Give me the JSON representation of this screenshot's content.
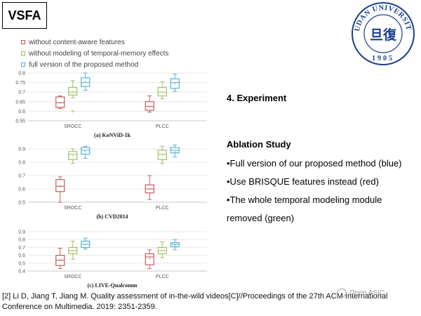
{
  "slide": {
    "title": "VSFA",
    "section_heading": "4. Experiment",
    "ablation_title": "Ablation Study",
    "bullets": [
      "•Full version of our proposed method (blue)",
      "•Use BRISQUE features instead (red)",
      "•The whole temporal modeling module",
      "removed (green)"
    ],
    "footnote_line1": "[2] Li D, Jiang T, Jiang M. Quality assessment of in-the-wild videos[C]//Proceedings of the 27th ACM International",
    "footnote_line2": "Conference on Multimedia. 2019: 2351-2359.",
    "watermark": "Open ASIC",
    "logo": {
      "top_text": "FUDAN UNIVERSITY",
      "year": "1905",
      "center_text": "旦復",
      "color": "#1a3f8f"
    }
  },
  "legend": [
    {
      "label": "without content-aware features",
      "color": "#c0504d"
    },
    {
      "label": "without modeling of temporal-memory effects",
      "color": "#9bbb59"
    },
    {
      "label": "full version of the proposed method",
      "color": "#4bacc6"
    }
  ],
  "chart_data": [
    {
      "type": "boxplot",
      "caption": "(a) KoNViD-1k",
      "categories": [
        "SROCC",
        "PLCC"
      ],
      "ylim": [
        0.55,
        0.8
      ],
      "yticks": [
        "0.55",
        "0.6",
        "0.65",
        "0.7",
        "0.75",
        "0.8"
      ],
      "series": [
        {
          "name": "without content-aware features",
          "color": "#c0504d",
          "boxes": [
            {
              "min": 0.615,
              "q1": 0.62,
              "median": 0.645,
              "q3": 0.675,
              "max": 0.68,
              "mean": 0.645
            },
            {
              "min": 0.595,
              "q1": 0.605,
              "median": 0.625,
              "q3": 0.65,
              "max": 0.68,
              "mean": 0.625
            }
          ]
        },
        {
          "name": "without modeling of temporal-memory effects",
          "color": "#9bbb59",
          "boxes": [
            {
              "min": 0.67,
              "q1": 0.685,
              "median": 0.7,
              "q3": 0.725,
              "max": 0.76,
              "mean": 0.705,
              "outliers": [
                0.6
              ]
            },
            {
              "min": 0.665,
              "q1": 0.68,
              "median": 0.7,
              "q3": 0.725,
              "max": 0.755,
              "mean": 0.7
            }
          ]
        },
        {
          "name": "full version of the proposed method",
          "color": "#4bacc6",
          "boxes": [
            {
              "min": 0.71,
              "q1": 0.73,
              "median": 0.75,
              "q3": 0.775,
              "max": 0.8,
              "mean": 0.755
            },
            {
              "min": 0.705,
              "q1": 0.72,
              "median": 0.75,
              "q3": 0.77,
              "max": 0.795,
              "mean": 0.745
            }
          ]
        }
      ]
    },
    {
      "type": "boxplot",
      "caption": "(b) CVD2014",
      "categories": [
        "SROCC",
        "PLCC"
      ],
      "ylim": [
        0.5,
        0.9
      ],
      "yticks": [
        "0.5",
        "0.6",
        "0.7",
        "0.8",
        "0.9"
      ],
      "series": [
        {
          "name": "without content-aware features",
          "color": "#c0504d",
          "boxes": [
            {
              "min": 0.5,
              "q1": 0.58,
              "median": 0.62,
              "q3": 0.67,
              "max": 0.69,
              "mean": 0.62
            },
            {
              "min": 0.52,
              "q1": 0.57,
              "median": 0.6,
              "q3": 0.63,
              "max": 0.7,
              "mean": 0.6
            }
          ]
        },
        {
          "name": "without modeling of temporal-memory effects",
          "color": "#9bbb59",
          "boxes": [
            {
              "min": 0.79,
              "q1": 0.82,
              "median": 0.86,
              "q3": 0.88,
              "max": 0.9,
              "mean": 0.85
            },
            {
              "min": 0.79,
              "q1": 0.82,
              "median": 0.86,
              "q3": 0.89,
              "max": 0.92,
              "mean": 0.85
            }
          ]
        },
        {
          "name": "full version of the proposed method",
          "color": "#4bacc6",
          "boxes": [
            {
              "min": 0.83,
              "q1": 0.86,
              "median": 0.89,
              "q3": 0.91,
              "max": 0.92,
              "mean": 0.88
            },
            {
              "min": 0.84,
              "q1": 0.87,
              "median": 0.89,
              "q3": 0.91,
              "max": 0.93,
              "mean": 0.88
            }
          ]
        }
      ]
    },
    {
      "type": "boxplot",
      "caption": "(c) LIVE-Qualcomm",
      "categories": [
        "SROCC",
        "PLCC"
      ],
      "ylim": [
        0.4,
        0.9
      ],
      "yticks": [
        "0.4",
        "0.5",
        "0.6",
        "0.7",
        "0.8",
        "0.9"
      ],
      "series": [
        {
          "name": "without content-aware features",
          "color": "#c0504d",
          "boxes": [
            {
              "min": 0.43,
              "q1": 0.47,
              "median": 0.54,
              "q3": 0.6,
              "max": 0.69,
              "mean": 0.54
            },
            {
              "min": 0.43,
              "q1": 0.48,
              "median": 0.58,
              "q3": 0.62,
              "max": 0.67,
              "mean": 0.56
            }
          ]
        },
        {
          "name": "without modeling of temporal-memory effects",
          "color": "#9bbb59",
          "boxes": [
            {
              "min": 0.55,
              "q1": 0.62,
              "median": 0.66,
              "q3": 0.7,
              "max": 0.78,
              "mean": 0.66
            },
            {
              "min": 0.57,
              "q1": 0.62,
              "median": 0.66,
              "q3": 0.7,
              "max": 0.77,
              "mean": 0.66
            }
          ]
        },
        {
          "name": "full version of the proposed method",
          "color": "#4bacc6",
          "boxes": [
            {
              "min": 0.68,
              "q1": 0.7,
              "median": 0.74,
              "q3": 0.78,
              "max": 0.82,
              "mean": 0.74
            },
            {
              "min": 0.67,
              "q1": 0.71,
              "median": 0.74,
              "q3": 0.76,
              "max": 0.8,
              "mean": 0.73
            }
          ]
        }
      ]
    }
  ]
}
